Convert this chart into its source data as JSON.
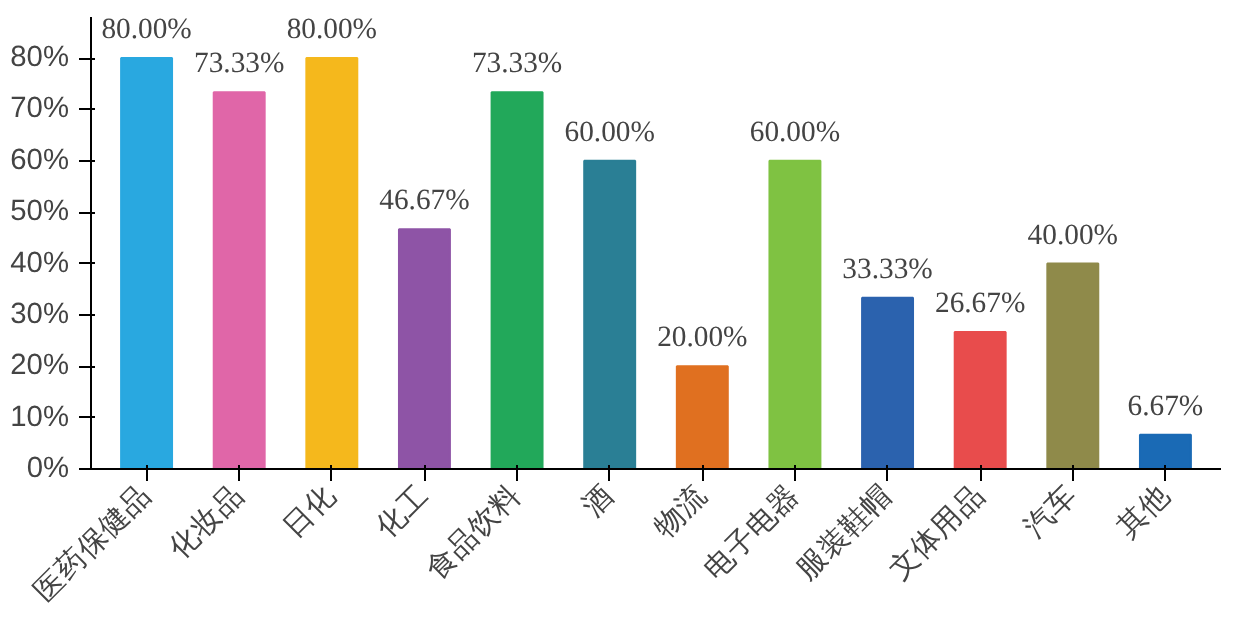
{
  "chart_data": {
    "type": "bar",
    "categories": [
      "医药保健品",
      "化妆品",
      "日化",
      "化工",
      "食品饮料",
      "酒",
      "物流",
      "电子电器",
      "服装鞋帽",
      "文体用品",
      "汽车",
      "其他"
    ],
    "values": [
      80.0,
      73.33,
      80.0,
      46.67,
      73.33,
      60.0,
      20.0,
      60.0,
      33.33,
      26.67,
      40.0,
      6.67
    ],
    "colors": [
      "#29a8e0",
      "#e066a8",
      "#f5b81c",
      "#8e54a6",
      "#22a85a",
      "#2a7f95",
      "#e07020",
      "#7fc242",
      "#2b62ae",
      "#e84c4c",
      "#8f8a4a",
      "#1a6ab5"
    ],
    "value_labels": [
      "80.00%",
      "73.33%",
      "80.00%",
      "46.67%",
      "73.33%",
      "60.00%",
      "20.00%",
      "60.00%",
      "33.33%",
      "26.67%",
      "40.00%",
      "6.67%"
    ],
    "ylim": [
      0,
      88
    ],
    "yticks": [
      {
        "value": 0,
        "label": "0%"
      },
      {
        "value": 10,
        "label": "10%"
      },
      {
        "value": 20,
        "label": "20%"
      },
      {
        "value": 30,
        "label": "30%"
      },
      {
        "value": 40,
        "label": "40%"
      },
      {
        "value": 50,
        "label": "50%"
      },
      {
        "value": 60,
        "label": "60%"
      },
      {
        "value": 70,
        "label": "70%"
      },
      {
        "value": 80,
        "label": "80%"
      }
    ],
    "grid": false
  }
}
